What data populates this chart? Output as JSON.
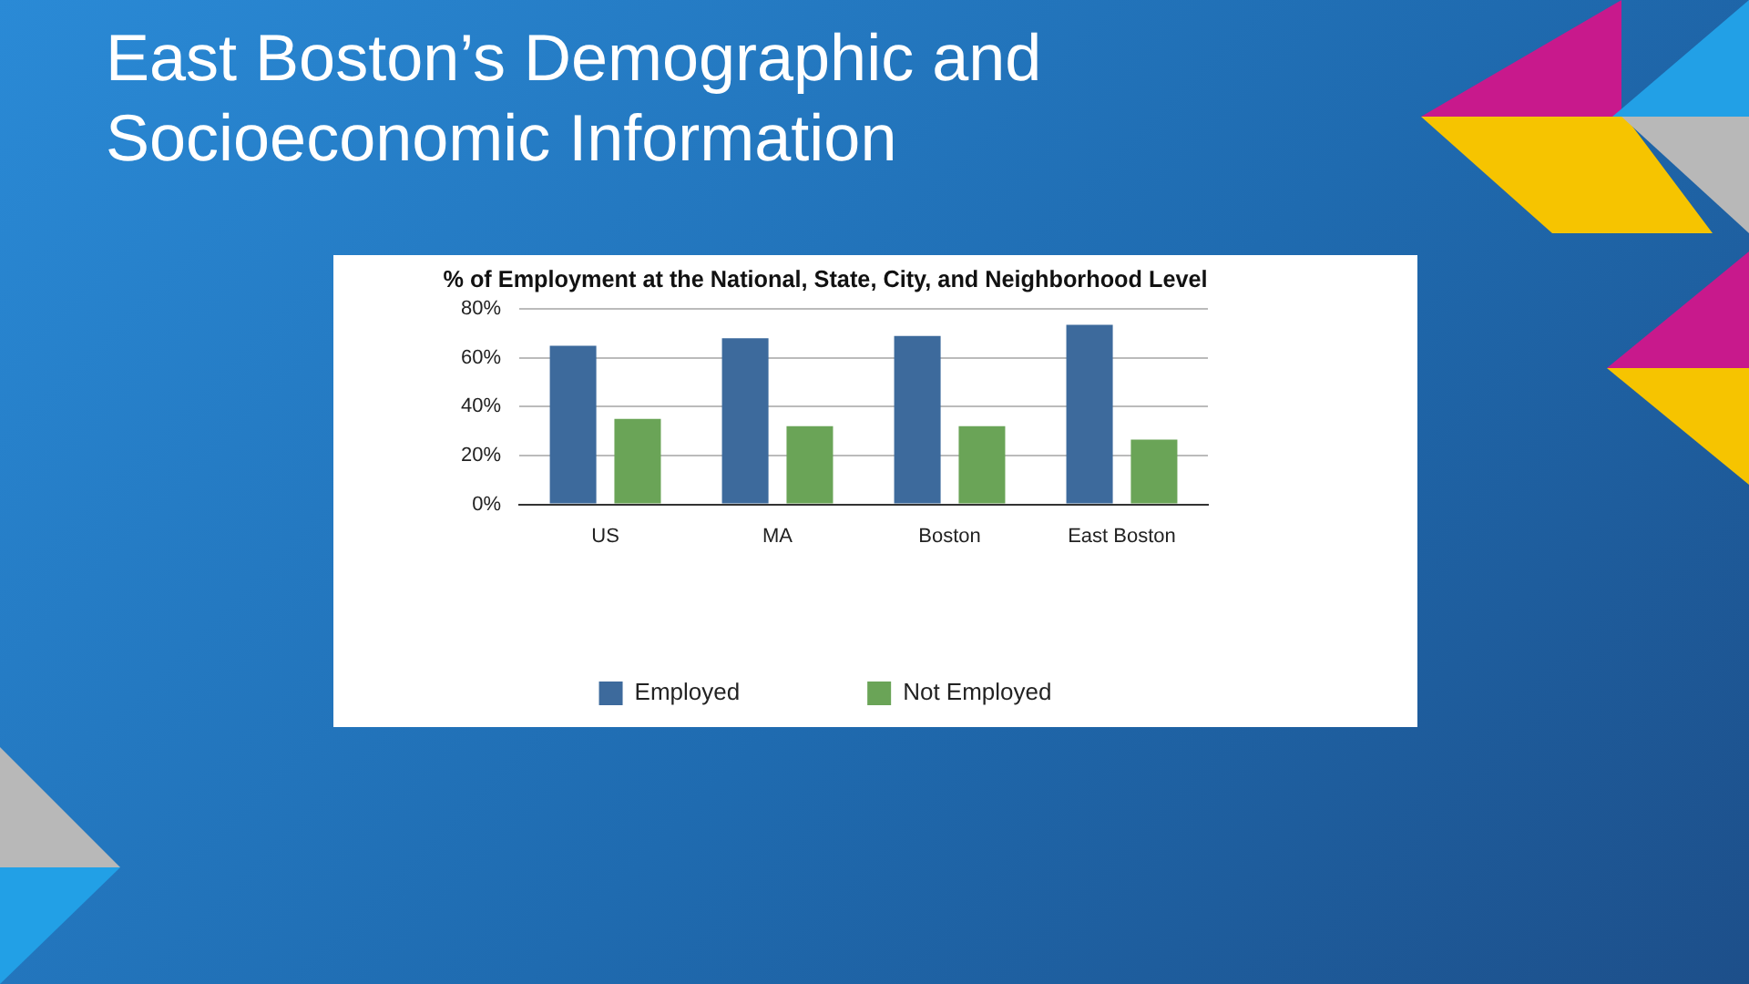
{
  "chart_data": {
    "type": "bar",
    "title": "East Boston’s Demographic and Socioeconomic Information",
    "subtitle": "% of Employment at the National, State, City, and Neighborhood Level",
    "categories": [
      "US",
      "MA",
      "Boston",
      "East Boston"
    ],
    "series": [
      {
        "name": "Employed",
        "color": "#3d6a9c",
        "values": [
          65,
          68,
          69,
          73.5
        ]
      },
      {
        "name": "Not Employed",
        "color": "#6aa457",
        "values": [
          35,
          32,
          32,
          26.5
        ]
      }
    ],
    "ylim": [
      0,
      80
    ],
    "yticks": [
      {
        "value": 0,
        "label": "0%"
      },
      {
        "value": 20,
        "label": "20%"
      },
      {
        "value": 40,
        "label": "40%"
      },
      {
        "value": 60,
        "label": "60%"
      },
      {
        "value": 80,
        "label": "80%"
      }
    ],
    "grid": "y",
    "legend": "bottom"
  }
}
